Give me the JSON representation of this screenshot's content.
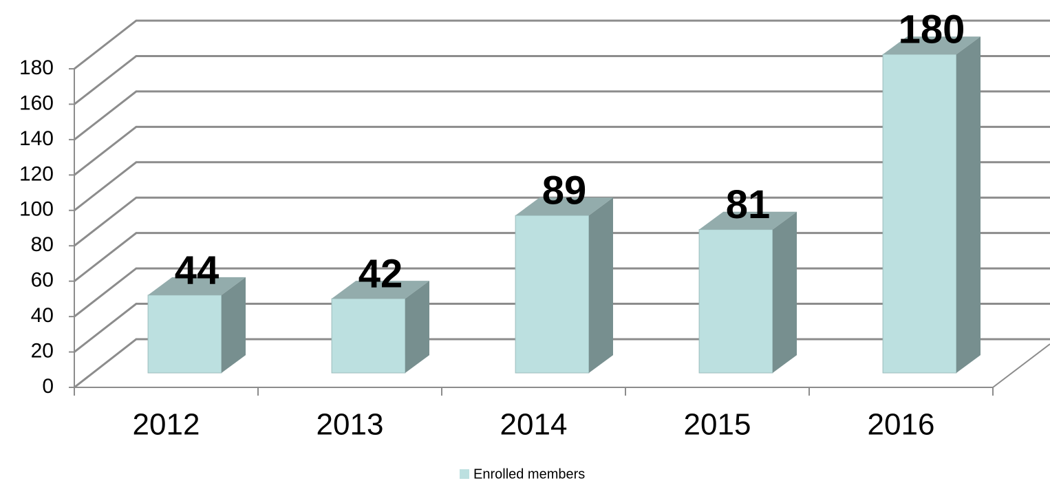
{
  "chart_data": {
    "type": "bar3d",
    "categories": [
      "2012",
      "2013",
      "2014",
      "2015",
      "2016"
    ],
    "series": [
      {
        "name": "Enrolled members",
        "color": "#bce0e0",
        "values": [
          44,
          42,
          89,
          81,
          180
        ]
      }
    ],
    "ylim": [
      0,
      180
    ],
    "yticks": [
      0,
      20,
      40,
      60,
      80,
      100,
      120,
      140,
      160,
      180
    ],
    "grid": true,
    "legend": "bottom",
    "data_labels": true
  }
}
